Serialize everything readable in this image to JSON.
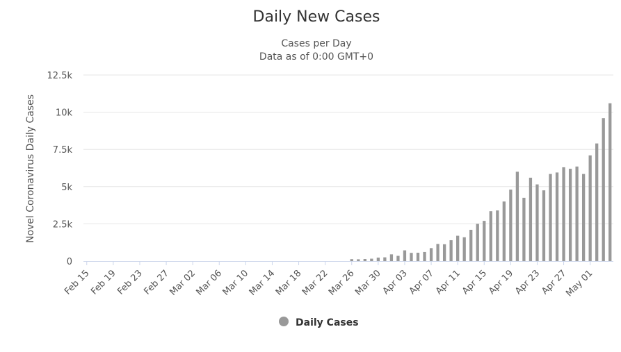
{
  "chart_data": {
    "type": "bar",
    "title": "Daily New Cases",
    "subtitle_lines": [
      "Cases per Day",
      "Data as of 0:00 GMT+0"
    ],
    "ylabel": "Novel Coronavirus Daily Cases",
    "xlabel": "",
    "ylim": [
      0,
      12500
    ],
    "yticks": [
      0,
      2500,
      5000,
      7500,
      10000,
      12500
    ],
    "ytick_labels": [
      "0",
      "2.5k",
      "5k",
      "7.5k",
      "10k",
      "12.5k"
    ],
    "xtick_labels": [
      "Feb 15",
      "Feb 19",
      "Feb 23",
      "Feb 27",
      "Mar 02",
      "Mar 06",
      "Mar 10",
      "Mar 14",
      "Mar 18",
      "Mar 22",
      "Mar 26",
      "Mar 30",
      "Apr 03",
      "Apr 07",
      "Apr 11",
      "Apr 15",
      "Apr 19",
      "Apr 23",
      "Apr 27",
      "May 01"
    ],
    "grid": true,
    "legend_position": "bottom-center",
    "series": [
      {
        "name": "Daily Cases",
        "color": "#999999",
        "x": [
          "Feb 15",
          "Feb 16",
          "Feb 17",
          "Feb 18",
          "Feb 19",
          "Feb 20",
          "Feb 21",
          "Feb 22",
          "Feb 23",
          "Feb 24",
          "Feb 25",
          "Feb 26",
          "Feb 27",
          "Feb 28",
          "Feb 29",
          "Mar 01",
          "Mar 02",
          "Mar 03",
          "Mar 04",
          "Mar 05",
          "Mar 06",
          "Mar 07",
          "Mar 08",
          "Mar 09",
          "Mar 10",
          "Mar 11",
          "Mar 12",
          "Mar 13",
          "Mar 14",
          "Mar 15",
          "Mar 16",
          "Mar 17",
          "Mar 18",
          "Mar 19",
          "Mar 20",
          "Mar 21",
          "Mar 22",
          "Mar 23",
          "Mar 24",
          "Mar 25",
          "Mar 26",
          "Mar 27",
          "Mar 28",
          "Mar 29",
          "Mar 30",
          "Mar 31",
          "Apr 01",
          "Apr 02",
          "Apr 03",
          "Apr 04",
          "Apr 05",
          "Apr 06",
          "Apr 07",
          "Apr 08",
          "Apr 09",
          "Apr 10",
          "Apr 11",
          "Apr 12",
          "Apr 13",
          "Apr 14",
          "Apr 15",
          "Apr 16",
          "Apr 17",
          "Apr 18",
          "Apr 19",
          "Apr 20",
          "Apr 21",
          "Apr 22",
          "Apr 23",
          "Apr 24",
          "Apr 25",
          "Apr 26",
          "Apr 27",
          "Apr 28",
          "Apr 29",
          "Apr 30",
          "May 01",
          "May 02",
          "May 03",
          "May 04"
        ],
        "values": [
          0,
          0,
          0,
          0,
          0,
          0,
          0,
          0,
          0,
          0,
          0,
          0,
          0,
          0,
          0,
          0,
          0,
          0,
          0,
          0,
          0,
          0,
          0,
          0,
          0,
          0,
          0,
          0,
          0,
          0,
          0,
          0,
          0,
          0,
          0,
          0,
          0,
          0,
          0,
          0,
          130,
          120,
          140,
          160,
          230,
          250,
          450,
          350,
          720,
          550,
          560,
          610,
          870,
          1150,
          1130,
          1400,
          1700,
          1600,
          2100,
          2500,
          2700,
          3350,
          3400,
          4000,
          4800,
          6000,
          4250,
          5600,
          5150,
          4750,
          5850,
          5950,
          6300,
          6200,
          6350,
          5850,
          7100,
          7900,
          9600,
          10600
        ]
      }
    ]
  }
}
